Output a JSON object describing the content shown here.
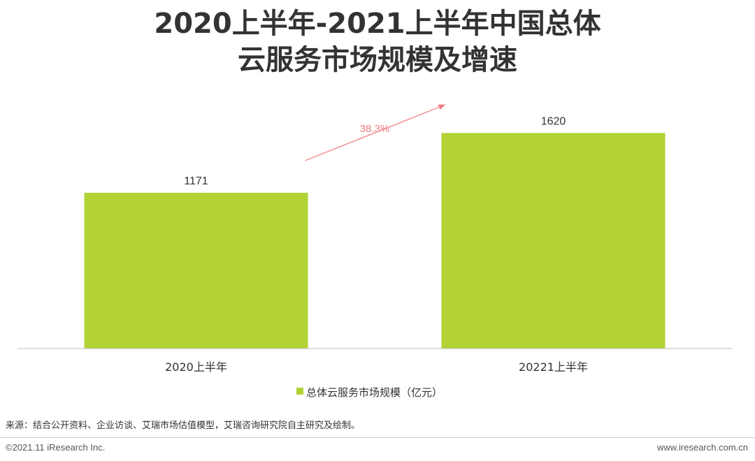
{
  "chart_data": {
    "type": "bar",
    "title_lines": [
      "2020上半年-2021上半年中国总体",
      "云服务市场规模及增速"
    ],
    "categories": [
      "2020上半年",
      "20221上半年"
    ],
    "series": [
      {
        "name": "总体云服务市场规模（亿元）",
        "values": [
          1171,
          1620
        ],
        "color": "#b2d235"
      }
    ],
    "data_labels": [
      "1171",
      "1620"
    ],
    "growth_annotation": {
      "text": "38.3%",
      "color": "#f07f85"
    },
    "ylim": [
      0,
      2100
    ],
    "grid": false,
    "legend_position": "bottom"
  },
  "source_note": "来源：结合公开资料、企业访谈、艾瑞市场估值模型，艾瑞咨询研究院自主研究及绘制。",
  "footer": {
    "copyright": "©2021.11 iResearch Inc.",
    "website": "www.iresearch.com.cn"
  }
}
